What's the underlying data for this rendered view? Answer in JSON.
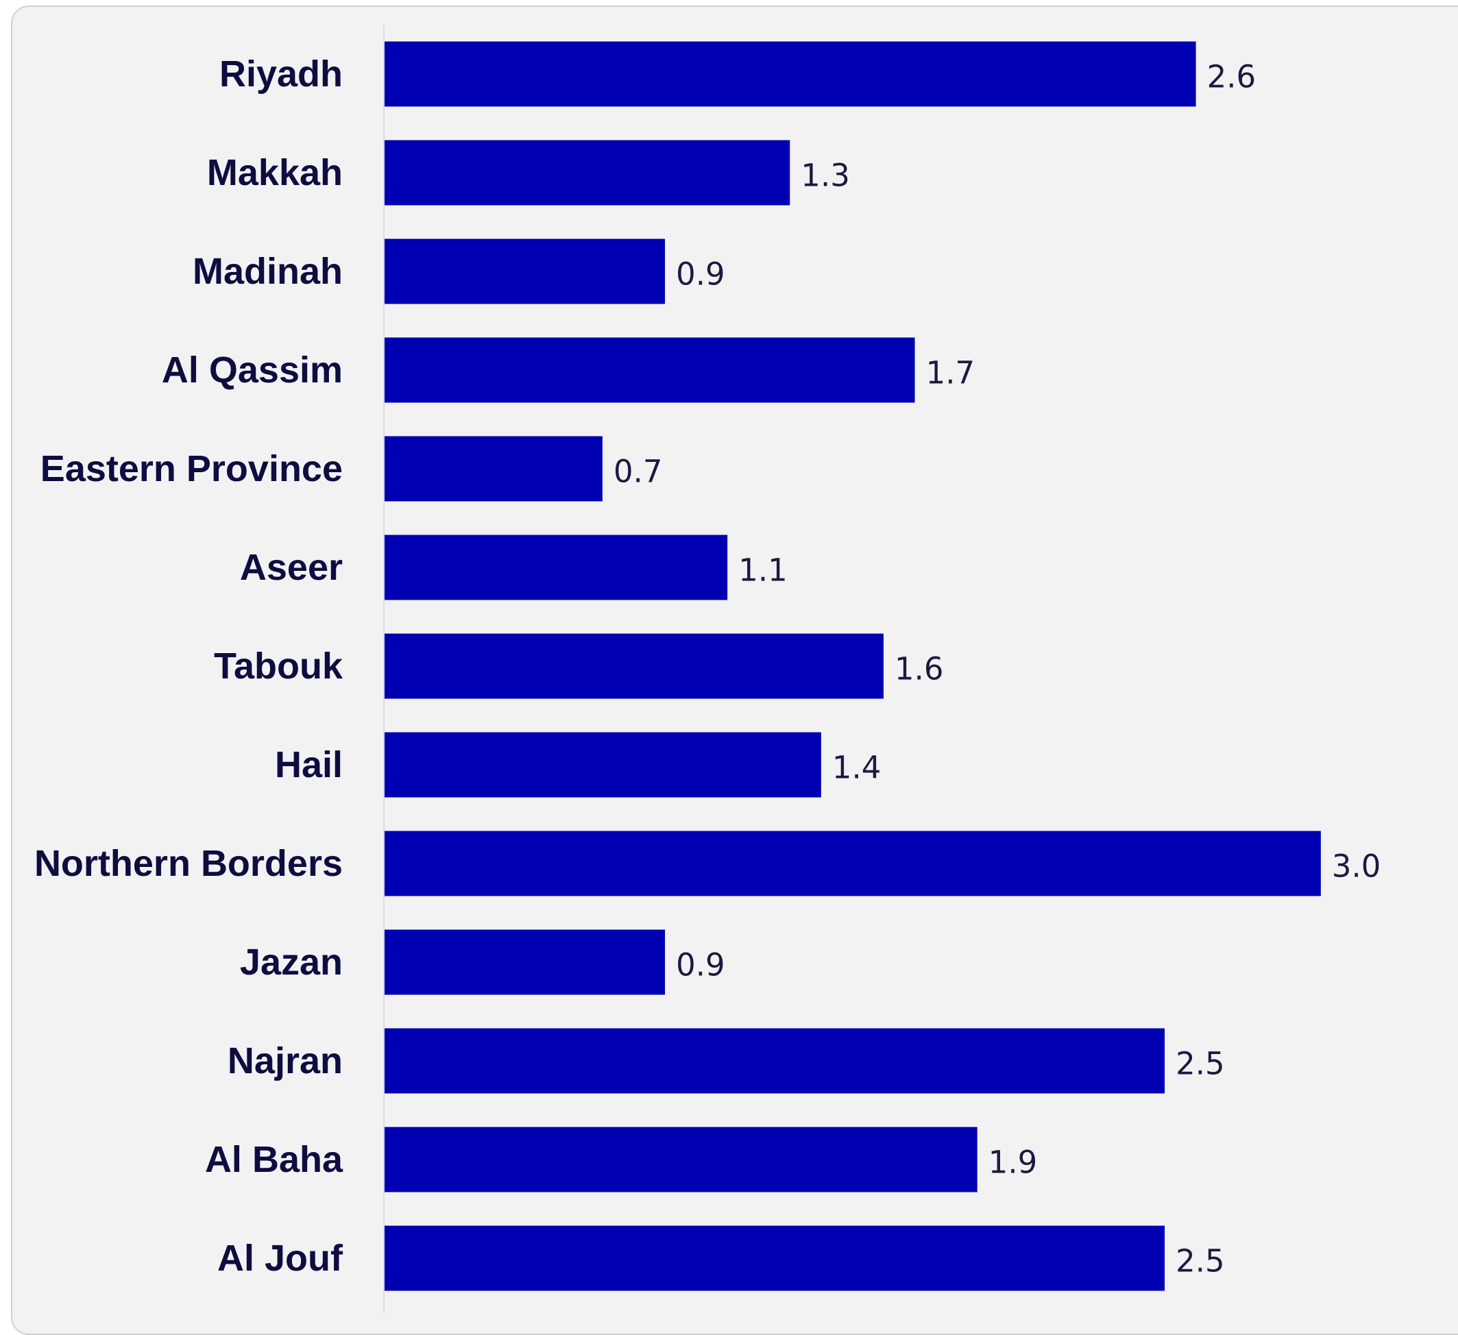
{
  "chart_data": {
    "type": "bar",
    "orientation": "horizontal",
    "categories": [
      "Riyadh",
      "Makkah",
      "Madinah",
      "Al Qassim",
      "Eastern Province",
      "Aseer",
      "Tabouk",
      "Hail",
      "Northern Borders",
      "Jazan",
      "Najran",
      "Al Baha",
      "Al Jouf"
    ],
    "values": [
      2.6,
      1.3,
      0.9,
      1.7,
      0.7,
      1.1,
      1.6,
      1.4,
      3.0,
      0.9,
      2.5,
      1.9,
      2.5
    ],
    "value_labels": [
      "2.6",
      "1.3",
      "0.9",
      "1.7",
      "0.7",
      "1.1",
      "1.6",
      "1.4",
      "3.0",
      "0.9",
      "2.5",
      "1.9",
      "2.5"
    ],
    "title": "",
    "xlabel": "",
    "ylabel": "",
    "xlim": [
      0,
      3.2
    ],
    "grid": false,
    "legend": "none",
    "colors": {
      "bar": "#0000b3",
      "category_label": "#0d0d40",
      "value_label": "#1a1a40",
      "axis_line": "#d9d9ec",
      "panel_background": "#f2f2f2",
      "panel_border": "#cfcfcf"
    }
  }
}
